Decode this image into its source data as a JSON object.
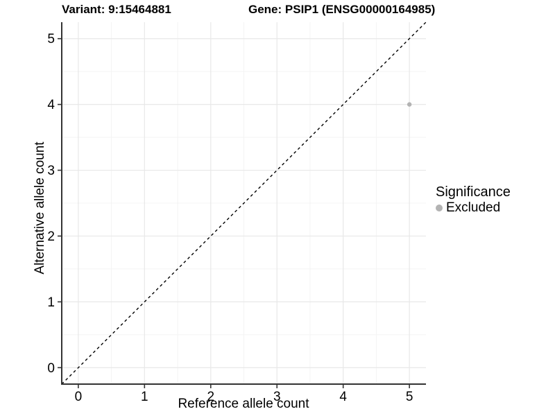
{
  "chart_data": {
    "type": "scatter",
    "title_left": "Variant: 9:15464881",
    "title_right": "Gene: PSIP1 (ENSG00000164985)",
    "xlabel": "Reference allele count",
    "ylabel": "Alternative allele count",
    "xlim": [
      -0.25,
      5.25
    ],
    "ylim": [
      -0.25,
      5.25
    ],
    "xticks": [
      0,
      1,
      2,
      3,
      4,
      5
    ],
    "yticks": [
      0,
      1,
      2,
      3,
      4,
      5
    ],
    "minor_xticks": [
      0.5,
      1.5,
      2.5,
      3.5,
      4.5
    ],
    "minor_yticks": [
      0.5,
      1.5,
      2.5,
      3.5,
      4.5
    ],
    "grid": "major and minor gridlines; axis lines on left and bottom only",
    "series": [
      {
        "name": "Excluded",
        "color": "#b3b3b3",
        "points": [
          {
            "x": 5,
            "y": 4
          }
        ]
      }
    ],
    "reference_line": {
      "kind": "identity y=x",
      "style": "dashed",
      "color": "#000000",
      "from": [
        -0.25,
        -0.25
      ],
      "to": [
        5.25,
        5.25
      ]
    },
    "legend": {
      "title": "Significance",
      "position": "right-middle",
      "items": [
        {
          "label": "Excluded",
          "color": "#b3b3b3"
        }
      ]
    },
    "colors": {
      "background": "#ffffff",
      "grid_major": "#e8e8e8",
      "grid_minor": "#f4f4f4",
      "axis_line": "#333333",
      "tick": "#333333",
      "text": "#000000"
    }
  }
}
